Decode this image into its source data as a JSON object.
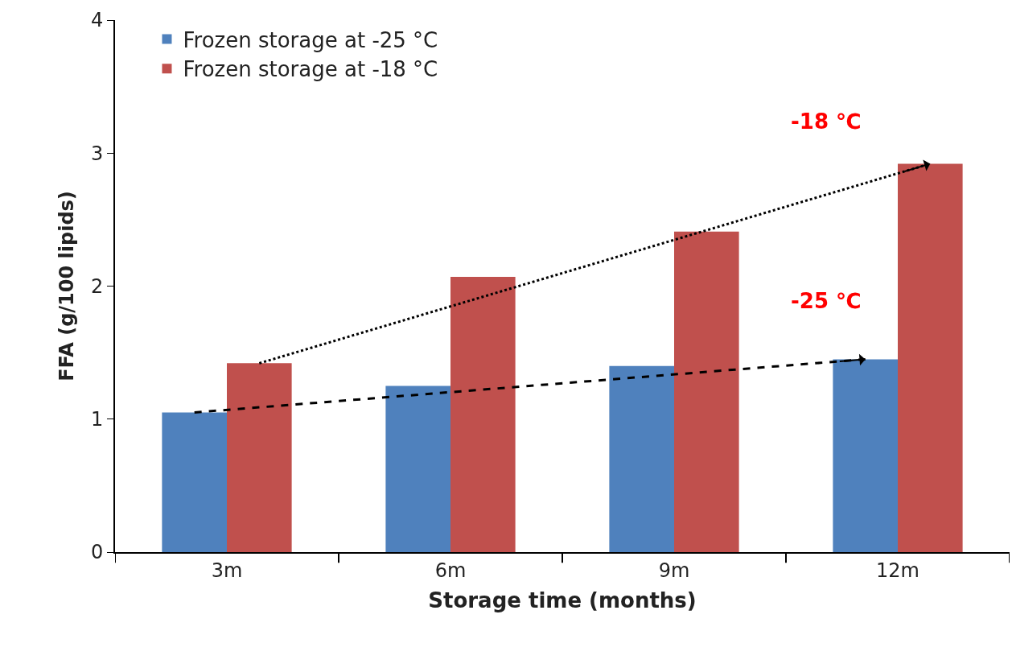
{
  "chart_data": {
    "type": "bar",
    "xlabel": "Storage time (months)",
    "ylabel": "FFA (g/100 lipids)",
    "categories": [
      "3m",
      "6m",
      "9m",
      "12m"
    ],
    "series": [
      {
        "name": "Frozen storage at -25 °C",
        "color": "#4f81bd",
        "values": [
          1.05,
          1.25,
          1.4,
          1.45
        ]
      },
      {
        "name": "Frozen storage at -18 °C",
        "color": "#c0504d",
        "values": [
          1.42,
          2.07,
          2.41,
          2.92
        ]
      }
    ],
    "ylim": [
      0,
      4
    ],
    "yticks": [
      0,
      1,
      2,
      3,
      4
    ],
    "legend": "top left",
    "annotations": [
      "-18 ℃",
      "-25 ℃"
    ]
  }
}
